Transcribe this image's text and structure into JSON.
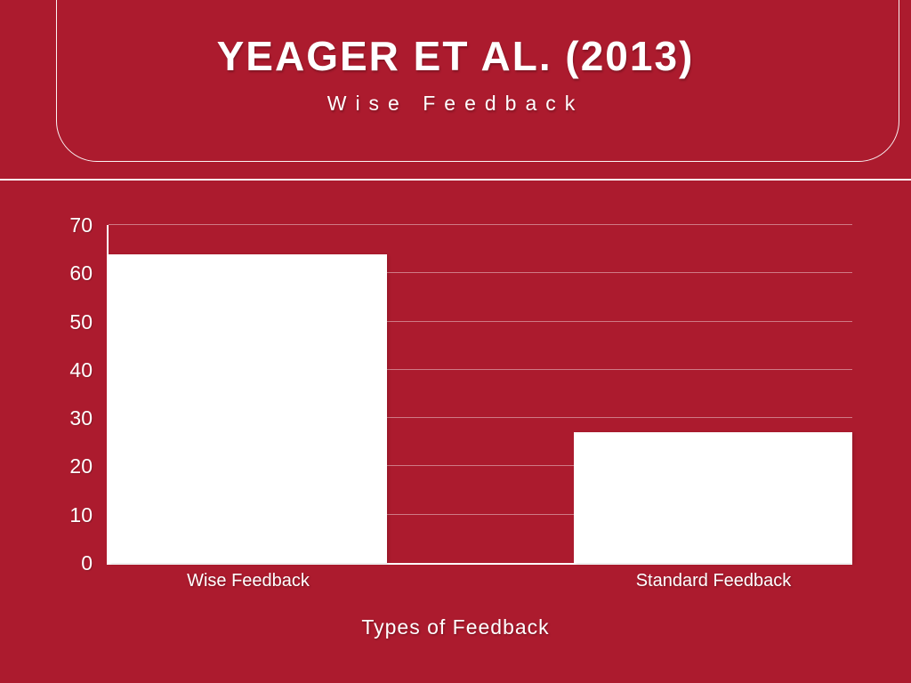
{
  "page": {
    "background_color": "#AC1B2E",
    "text_color": "#FFFFFF",
    "accent_color": "#FFFFFF"
  },
  "header": {
    "title": "YEAGER ET AL. (2013)",
    "subtitle": "Wise Feedback"
  },
  "chart_data": {
    "type": "bar",
    "categories": [
      "Wise Feedback",
      "Standard Feedback"
    ],
    "values": [
      64,
      27
    ],
    "title": "",
    "xlabel": "Types of Feedback",
    "ylabel": "",
    "ylim": [
      0,
      70
    ],
    "yticks": [
      0,
      10,
      20,
      30,
      40,
      50,
      60,
      70
    ],
    "grid": true,
    "legend": false,
    "bar_color": "#FFFFFF",
    "axis_color": "#FFFFFF",
    "gridline_color": "rgba(255,255,255,0.42)",
    "layout": {
      "bar_width_fraction": 0.374,
      "first_bar_flush_left": true,
      "last_bar_flush_right": true
    }
  }
}
